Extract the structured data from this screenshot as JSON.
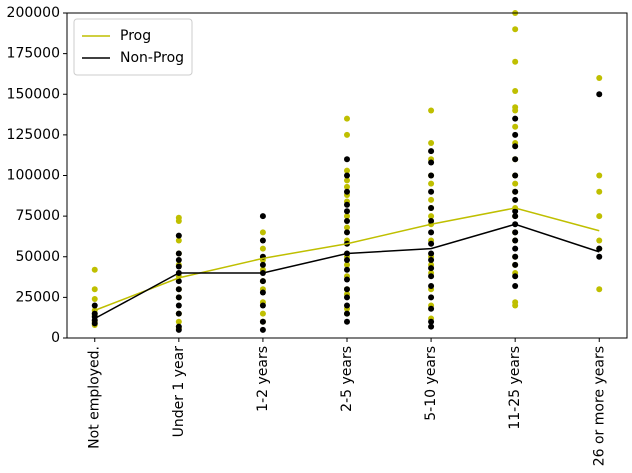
{
  "chart_data": {
    "type": "line",
    "categories": [
      "Not employed.",
      "Under 1 year",
      "1-2 years",
      "2-5 years",
      "5-10 years",
      "11-25 years",
      "26 or more years"
    ],
    "ylim": [
      0,
      200000
    ],
    "yticks": [
      0,
      25000,
      50000,
      75000,
      100000,
      125000,
      150000,
      175000,
      200000
    ],
    "legend": "upper left",
    "series": [
      {
        "name": "Prog",
        "color": "#bfbf00",
        "values": [
          17000,
          37000,
          49000,
          58000,
          70000,
          80000,
          66000
        ],
        "points": [
          [
            42000,
            30000,
            24000,
            17000,
            14000,
            10000,
            8000
          ],
          [
            74000,
            72000,
            60000,
            52000,
            45000,
            38000,
            30000,
            25000,
            15000,
            10000,
            6000
          ],
          [
            65000,
            55000,
            48000,
            42000,
            35000,
            30000,
            22000,
            15000,
            10000
          ],
          [
            135000,
            125000,
            103000,
            97000,
            93000,
            88000,
            84000,
            75000,
            68000,
            60000,
            50000,
            45000,
            38000,
            30000,
            27000,
            18000,
            15000
          ],
          [
            140000,
            120000,
            110000,
            100000,
            95000,
            85000,
            80000,
            75000,
            70000,
            60000,
            50000,
            45000,
            40000,
            30000,
            20000,
            12000
          ],
          [
            200000,
            190000,
            170000,
            152000,
            142000,
            140000,
            130000,
            120000,
            110000,
            100000,
            95000,
            90000,
            80000,
            75000,
            65000,
            60000,
            50000,
            45000,
            40000,
            22000,
            20000
          ],
          [
            160000,
            100000,
            90000,
            75000,
            60000,
            55000,
            30000
          ]
        ]
      },
      {
        "name": "Non-Prog",
        "color": "#000000",
        "values": [
          12000,
          40000,
          40000,
          52000,
          55000,
          70000,
          53000
        ],
        "points": [
          [
            20000,
            15000,
            13000,
            11000,
            9000
          ],
          [
            63000,
            52000,
            48000,
            44000,
            40000,
            35000,
            30000,
            25000,
            20000,
            15000,
            7000,
            5000
          ],
          [
            75000,
            60000,
            50000,
            45000,
            40000,
            35000,
            28000,
            20000,
            10000,
            5000
          ],
          [
            110000,
            100000,
            90000,
            82000,
            78000,
            72000,
            65000,
            58000,
            52000,
            48000,
            42000,
            36000,
            30000,
            25000,
            20000,
            15000,
            10000
          ],
          [
            115000,
            108000,
            100000,
            90000,
            80000,
            72000,
            65000,
            58000,
            52000,
            48000,
            43000,
            38000,
            32000,
            25000,
            18000,
            10000,
            7000
          ],
          [
            135000,
            125000,
            118000,
            110000,
            100000,
            90000,
            85000,
            78000,
            75000,
            70000,
            65000,
            60000,
            55000,
            50000,
            45000,
            38000,
            32000
          ],
          [
            150000,
            55000,
            50000
          ]
        ]
      }
    ]
  }
}
